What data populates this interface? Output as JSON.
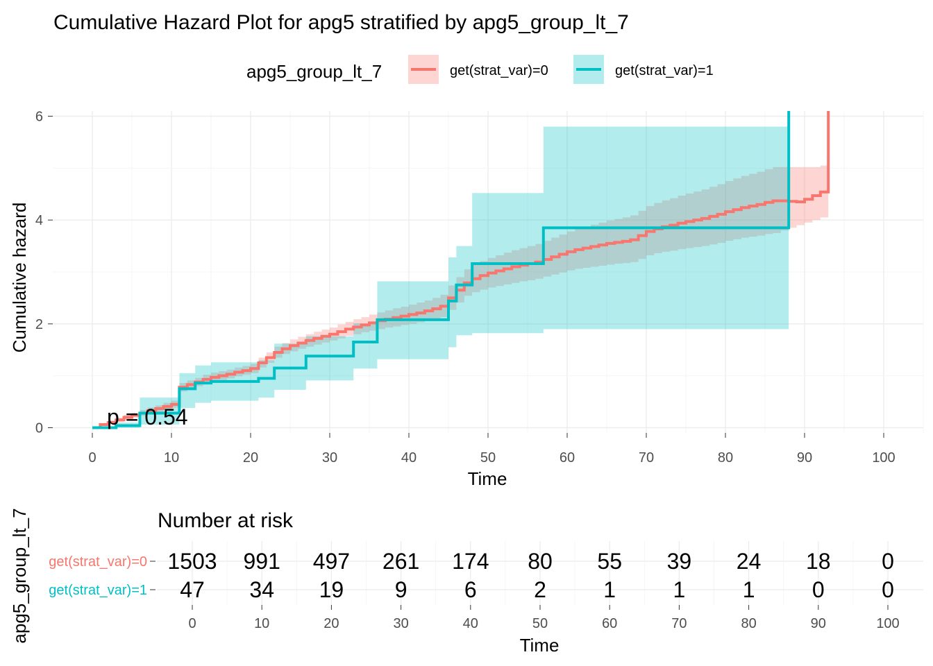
{
  "chart_data": [
    {
      "type": "line",
      "subtype": "step",
      "title": "Cumulative Hazard Plot for apg5 stratified by apg5_group_lt_7",
      "xlabel": "Time",
      "ylabel": "Cumulative hazard",
      "xlim": [
        -5,
        105
      ],
      "ylim": [
        -0.1,
        6.1
      ],
      "xticks": [
        0,
        10,
        20,
        30,
        40,
        50,
        60,
        70,
        80,
        90,
        100
      ],
      "yticks": [
        0,
        2,
        4,
        6
      ],
      "grid": true,
      "legend": {
        "title": "apg5_group_lt_7",
        "position": "top",
        "entries": [
          "get(strat_var)=0",
          "get(strat_var)=1"
        ]
      },
      "annotation": "p = 0.54",
      "series": [
        {
          "name": "get(strat_var)=0",
          "color": "#F8766D",
          "x": [
            0,
            1,
            2,
            3,
            4,
            5,
            6,
            7,
            8,
            9,
            10,
            11,
            12,
            13,
            14,
            15,
            16,
            17,
            18,
            19,
            20,
            21,
            22,
            23,
            24,
            25,
            26,
            27,
            28,
            29,
            30,
            31,
            32,
            33,
            34,
            35,
            36,
            37,
            38,
            39,
            40,
            41,
            42,
            43,
            44,
            45,
            46,
            47,
            48,
            49,
            50,
            51,
            52,
            53,
            54,
            55,
            56,
            57,
            58,
            59,
            60,
            61,
            62,
            63,
            64,
            65,
            66,
            67,
            68,
            69,
            70,
            71,
            72,
            73,
            74,
            75,
            76,
            77,
            78,
            79,
            80,
            81,
            82,
            83,
            84,
            85,
            86,
            87,
            88,
            89,
            90,
            91,
            92,
            93
          ],
          "y": [
            0,
            0.06,
            0.1,
            0.15,
            0.2,
            0.24,
            0.28,
            0.33,
            0.37,
            0.41,
            0.45,
            0.78,
            0.83,
            0.88,
            0.93,
            0.97,
            1.0,
            1.03,
            1.07,
            1.1,
            1.14,
            1.25,
            1.35,
            1.45,
            1.52,
            1.58,
            1.63,
            1.68,
            1.72,
            1.76,
            1.8,
            1.85,
            1.9,
            1.94,
            1.98,
            2.02,
            2.06,
            2.09,
            2.12,
            2.15,
            2.18,
            2.21,
            2.25,
            2.29,
            2.34,
            2.5,
            2.65,
            2.79,
            2.87,
            2.93,
            2.98,
            3.02,
            3.06,
            3.1,
            3.13,
            3.16,
            3.19,
            3.24,
            3.29,
            3.34,
            3.39,
            3.43,
            3.46,
            3.49,
            3.52,
            3.55,
            3.57,
            3.59,
            3.62,
            3.7,
            3.78,
            3.83,
            3.87,
            3.9,
            3.94,
            3.97,
            4.0,
            4.03,
            4.07,
            4.11,
            4.16,
            4.2,
            4.24,
            4.27,
            4.3,
            4.34,
            4.37,
            4.37,
            4.36,
            4.35,
            4.4,
            4.47,
            4.54,
            6.1
          ],
          "ci_low": [
            0,
            0.03,
            0.07,
            0.11,
            0.15,
            0.19,
            0.23,
            0.27,
            0.31,
            0.35,
            0.39,
            0.7,
            0.75,
            0.8,
            0.85,
            0.89,
            0.92,
            0.95,
            0.99,
            1.02,
            1.05,
            1.16,
            1.25,
            1.35,
            1.42,
            1.47,
            1.52,
            1.56,
            1.6,
            1.64,
            1.68,
            1.72,
            1.77,
            1.8,
            1.84,
            1.87,
            1.9,
            1.93,
            1.95,
            1.98,
            2.0,
            2.03,
            2.06,
            2.09,
            2.13,
            2.27,
            2.41,
            2.54,
            2.61,
            2.66,
            2.7,
            2.73,
            2.76,
            2.79,
            2.82,
            2.84,
            2.87,
            2.91,
            2.95,
            2.99,
            3.03,
            3.06,
            3.08,
            3.1,
            3.12,
            3.14,
            3.16,
            3.17,
            3.19,
            3.25,
            3.32,
            3.36,
            3.39,
            3.41,
            3.44,
            3.46,
            3.48,
            3.5,
            3.53,
            3.56,
            3.6,
            3.63,
            3.66,
            3.68,
            3.7,
            3.73,
            3.75,
            3.8,
            3.85,
            3.9,
            3.95,
            4.0,
            4.05,
            4.05
          ],
          "ci_high": [
            0,
            0.09,
            0.14,
            0.19,
            0.25,
            0.29,
            0.34,
            0.39,
            0.43,
            0.48,
            0.52,
            0.86,
            0.91,
            0.96,
            1.02,
            1.06,
            1.09,
            1.12,
            1.16,
            1.19,
            1.23,
            1.35,
            1.45,
            1.56,
            1.63,
            1.7,
            1.75,
            1.8,
            1.85,
            1.89,
            1.93,
            1.99,
            2.04,
            2.09,
            2.13,
            2.18,
            2.22,
            2.26,
            2.3,
            2.33,
            2.37,
            2.41,
            2.45,
            2.5,
            2.56,
            2.74,
            2.9,
            3.05,
            3.14,
            3.21,
            3.27,
            3.32,
            3.37,
            3.42,
            3.46,
            3.5,
            3.54,
            3.6,
            3.66,
            3.72,
            3.78,
            3.83,
            3.87,
            3.91,
            3.95,
            3.99,
            4.02,
            4.05,
            4.09,
            4.18,
            4.27,
            4.33,
            4.38,
            4.42,
            4.47,
            4.51,
            4.55,
            4.59,
            4.64,
            4.69,
            4.75,
            4.8,
            4.85,
            4.89,
            4.93,
            4.98,
            5.02,
            5.02,
            5.02,
            5.02,
            5.02,
            5.02,
            5.05,
            5.05
          ]
        },
        {
          "name": "get(strat_var)=1",
          "color": "#00BFC4",
          "x": [
            0,
            3,
            6,
            11,
            13,
            15,
            21,
            23,
            27,
            33,
            36,
            45,
            46,
            48,
            57,
            88
          ],
          "y": [
            0,
            0.04,
            0.28,
            0.75,
            0.86,
            0.89,
            0.95,
            1.15,
            1.38,
            1.65,
            2.08,
            2.44,
            2.75,
            3.16,
            3.85,
            6.1
          ],
          "ci_low": [
            0,
            0.0,
            0.06,
            0.38,
            0.48,
            0.52,
            0.58,
            0.73,
            0.91,
            1.14,
            1.32,
            1.55,
            1.78,
            1.82,
            1.9,
            1.9
          ],
          "ci_high": [
            0,
            0.1,
            0.58,
            1.05,
            1.2,
            1.26,
            1.3,
            1.62,
            1.76,
            2.01,
            2.82,
            3.28,
            3.5,
            4.52,
            5.8,
            5.8
          ]
        }
      ]
    },
    {
      "type": "table",
      "title": "Number at risk",
      "xlabel": "Time",
      "ylabel": "apg5_group_lt_7",
      "times": [
        0,
        10,
        20,
        30,
        40,
        50,
        60,
        70,
        80,
        90,
        100
      ],
      "rows": [
        {
          "name": "get(strat_var)=0",
          "color": "#F8766D",
          "values": [
            1503,
            991,
            497,
            261,
            174,
            80,
            55,
            39,
            24,
            18,
            0
          ]
        },
        {
          "name": "get(strat_var)=1",
          "color": "#00BFC4",
          "values": [
            47,
            34,
            19,
            9,
            6,
            2,
            1,
            1,
            1,
            0,
            0
          ]
        }
      ]
    }
  ]
}
